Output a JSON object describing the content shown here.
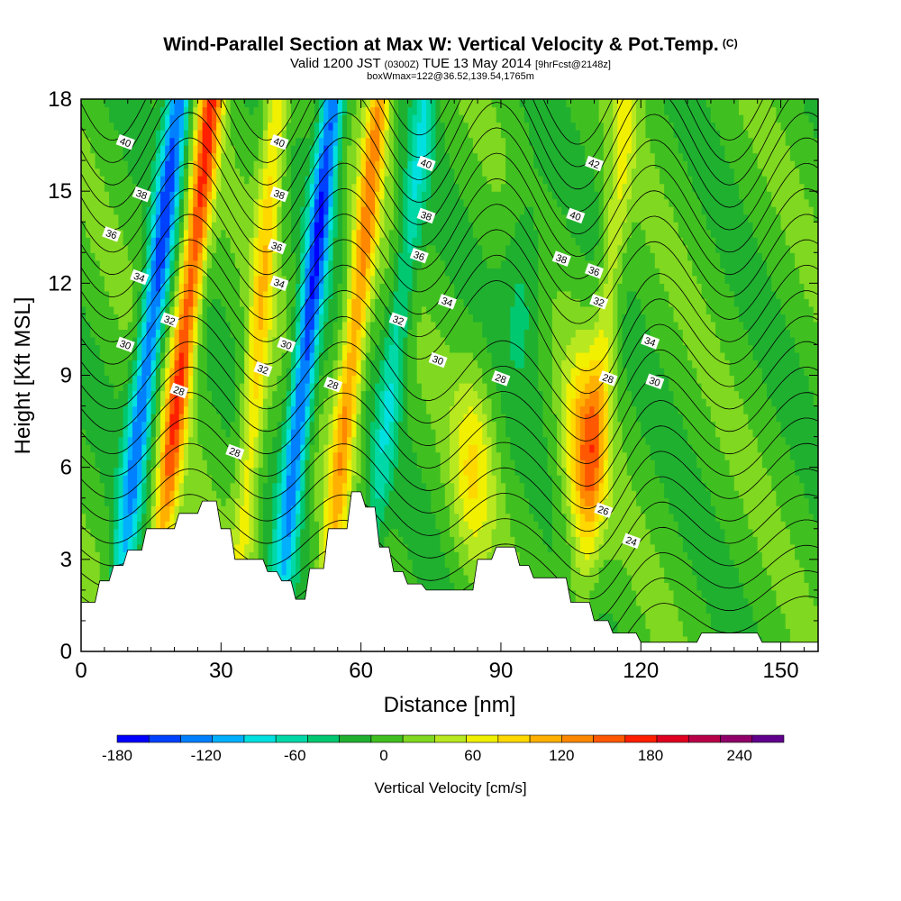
{
  "header": {
    "title": "Wind-Parallel Section at Max W: Vertical Velocity & Pot.Temp.",
    "copyright": "(C)",
    "valid_prefix": "Valid 1200 JST",
    "valid_zulu": "(0300Z)",
    "valid_date": "TUE 13 May 2014",
    "forecast_tag": "[9hrFcst@2148z]",
    "box_info": "boxWmax=122@36.52,139.54,1765m"
  },
  "colors": {
    "palette": [
      "#0000ff",
      "#0040ff",
      "#0080ff",
      "#00b0ff",
      "#00e0e0",
      "#00d8a8",
      "#00c870",
      "#20b030",
      "#40c020",
      "#80d820",
      "#b8e820",
      "#f0f000",
      "#ffd800",
      "#ffb000",
      "#ff8800",
      "#ff5800",
      "#ff2000",
      "#e00020",
      "#b80048",
      "#900068",
      "#60008c"
    ],
    "terrain": "#ffffff",
    "contour": "#000000"
  },
  "chart_data": {
    "type": "heatmap",
    "xlabel": "Distance [nm]",
    "ylabel": "Height [Kft MSL]",
    "xlim": [
      0,
      158
    ],
    "ylim": [
      0,
      18
    ],
    "x_ticks": [
      0,
      30,
      60,
      90,
      120,
      150
    ],
    "y_ticks": [
      0,
      3,
      6,
      9,
      12,
      15,
      18
    ],
    "colorbar": {
      "label": "Vertical Velocity [cm/s]",
      "range": [
        -180,
        270
      ],
      "step": 22.5,
      "tick_values": [
        -180,
        -120,
        -60,
        0,
        60,
        120,
        180,
        240
      ]
    },
    "terrain_profile": {
      "x": [
        0,
        3,
        4,
        6,
        7,
        9,
        10,
        13,
        14,
        20,
        21,
        25,
        26,
        29,
        30,
        32,
        33,
        39,
        40,
        42,
        43,
        45,
        46,
        48,
        49,
        52,
        53,
        57,
        58,
        60,
        61,
        63,
        64,
        66,
        67,
        69,
        70,
        73,
        74,
        84,
        85,
        88,
        89,
        93,
        94,
        96,
        97,
        104,
        105,
        109,
        110,
        113,
        114,
        119,
        120,
        132,
        133,
        145,
        146,
        158
      ],
      "y": [
        1.6,
        1.6,
        2.3,
        2.3,
        2.8,
        2.8,
        3.3,
        3.3,
        4.0,
        4.0,
        4.5,
        4.5,
        4.9,
        4.9,
        4.0,
        4.0,
        3.0,
        3.0,
        2.6,
        2.6,
        2.3,
        2.3,
        1.7,
        1.7,
        2.7,
        2.7,
        4.0,
        4.0,
        5.2,
        5.2,
        4.7,
        4.7,
        3.4,
        3.4,
        2.6,
        2.6,
        2.2,
        2.2,
        2.0,
        2.0,
        3.0,
        3.0,
        3.4,
        3.4,
        2.8,
        2.8,
        2.4,
        2.4,
        1.6,
        1.6,
        1.0,
        1.0,
        0.6,
        0.6,
        0.3,
        0.3,
        0.6,
        0.6,
        0.3,
        0.3
      ]
    },
    "vertical_velocity_features": [
      {
        "type": "updraft",
        "x_at_top": 28,
        "lean": 0.75,
        "amplitude_cm_s": 170
      },
      {
        "type": "downdraft",
        "x_at_top": 21,
        "lean": 0.8,
        "amplitude_cm_s": -150
      },
      {
        "type": "downdraft",
        "x_at_top": 54,
        "lean": 0.7,
        "amplitude_cm_s": -160
      },
      {
        "type": "updraft",
        "x_at_top": 64,
        "lean": 0.7,
        "amplitude_cm_s": 130
      },
      {
        "type": "updraft",
        "x_at_top": 42,
        "lean": 0.5,
        "amplitude_cm_s": 90
      },
      {
        "type": "downdraft",
        "x_at_top": 74,
        "lean": 0.8,
        "amplitude_cm_s": -70
      },
      {
        "type": "updraft",
        "center_x": 108,
        "center_y": 6.5,
        "amplitude_cm_s": 120
      },
      {
        "type": "updraft",
        "center_x": 84,
        "center_y": 6.0,
        "amplitude_cm_s": 70
      },
      {
        "type": "updraft",
        "x_at_top": 117,
        "amplitude_cm_s": 55
      },
      {
        "type": "downdraft",
        "center_x": 95,
        "center_y": 12,
        "amplitude_cm_s": -45
      }
    ],
    "theta_contour_labels": [
      {
        "text": "40",
        "x": 9.5,
        "y": 16.6
      },
      {
        "text": "38",
        "x": 13,
        "y": 14.9
      },
      {
        "text": "36",
        "x": 6.5,
        "y": 13.6
      },
      {
        "text": "34",
        "x": 12.5,
        "y": 12.2
      },
      {
        "text": "32",
        "x": 19,
        "y": 10.8
      },
      {
        "text": "30",
        "x": 9.5,
        "y": 10.0
      },
      {
        "text": "28",
        "x": 21,
        "y": 8.5
      },
      {
        "text": "28",
        "x": 33,
        "y": 6.5
      },
      {
        "text": "40",
        "x": 42.5,
        "y": 16.6
      },
      {
        "text": "38",
        "x": 42.5,
        "y": 14.9
      },
      {
        "text": "36",
        "x": 42,
        "y": 13.2
      },
      {
        "text": "34",
        "x": 42.5,
        "y": 12.0
      },
      {
        "text": "30",
        "x": 44,
        "y": 10.0
      },
      {
        "text": "32",
        "x": 39,
        "y": 9.2
      },
      {
        "text": "28",
        "x": 54,
        "y": 8.7
      },
      {
        "text": "32",
        "x": 68,
        "y": 10.8
      },
      {
        "text": "40",
        "x": 74,
        "y": 15.9
      },
      {
        "text": "38",
        "x": 74,
        "y": 14.2
      },
      {
        "text": "36",
        "x": 72.5,
        "y": 12.9
      },
      {
        "text": "34",
        "x": 78.5,
        "y": 11.4
      },
      {
        "text": "30",
        "x": 76.5,
        "y": 9.5
      },
      {
        "text": "28",
        "x": 90,
        "y": 8.9
      },
      {
        "text": "42",
        "x": 110,
        "y": 15.9
      },
      {
        "text": "40",
        "x": 106,
        "y": 14.2
      },
      {
        "text": "38",
        "x": 103,
        "y": 12.8
      },
      {
        "text": "36",
        "x": 110,
        "y": 12.4
      },
      {
        "text": "32",
        "x": 111,
        "y": 11.4
      },
      {
        "text": "34",
        "x": 122,
        "y": 10.1
      },
      {
        "text": "28",
        "x": 113,
        "y": 8.9
      },
      {
        "text": "30",
        "x": 123,
        "y": 8.8
      },
      {
        "text": "26",
        "x": 112,
        "y": 4.6
      },
      {
        "text": "24",
        "x": 118,
        "y": 3.6
      }
    ]
  }
}
